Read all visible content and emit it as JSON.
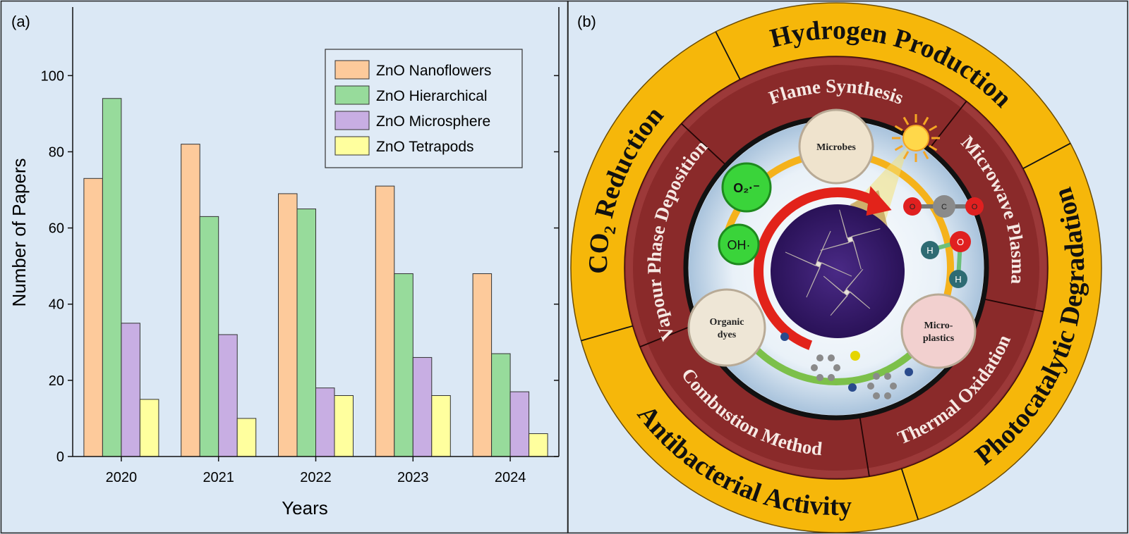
{
  "chart_data": {
    "type": "bar",
    "panel_label": "(a)",
    "xlabel": "Years",
    "ylabel": "Number of Papers",
    "categories": [
      "2020",
      "2021",
      "2022",
      "2023",
      "2024"
    ],
    "series": [
      {
        "name": "ZnO Nanoflowers",
        "color": "#fdca9b",
        "values": [
          73,
          82,
          69,
          71,
          48
        ]
      },
      {
        "name": "ZnO Hierarchical",
        "color": "#97db9b",
        "values": [
          94,
          63,
          65,
          48,
          27
        ]
      },
      {
        "name": "ZnO Microsphere",
        "color": "#c8aee3",
        "values": [
          35,
          32,
          18,
          26,
          17
        ]
      },
      {
        "name": "ZnO Tetrapods",
        "color": "#ffff9e",
        "values": [
          15,
          10,
          16,
          16,
          6
        ]
      }
    ],
    "ylim": [
      0,
      118
    ],
    "yticks": [
      0,
      20,
      40,
      60,
      80,
      100
    ],
    "legend": "upper right",
    "grid": false
  },
  "diagram": {
    "panel_label": "(b)",
    "applications": [
      "Hydrogen Production",
      "Photocatalytic Degradation",
      "Antibacterial Activity",
      "CO₂ Reduction"
    ],
    "synthesis": [
      "Flame Synthesis",
      "Microwave Plasma",
      "Thermal Oxidation",
      "Combustion Method",
      "Vapour Phase Deposition"
    ],
    "pollutants": [
      {
        "lines": [
          "Microbes"
        ]
      },
      {
        "lines": [
          "Organic",
          "dyes"
        ]
      },
      {
        "lines": [
          "Micro-",
          "plastics"
        ]
      }
    ],
    "radicals": [
      "O₂·⁻",
      "OH·"
    ],
    "co2_atoms": [
      "O",
      "C",
      "O"
    ],
    "water_atoms": [
      "H",
      "O",
      "H"
    ]
  }
}
